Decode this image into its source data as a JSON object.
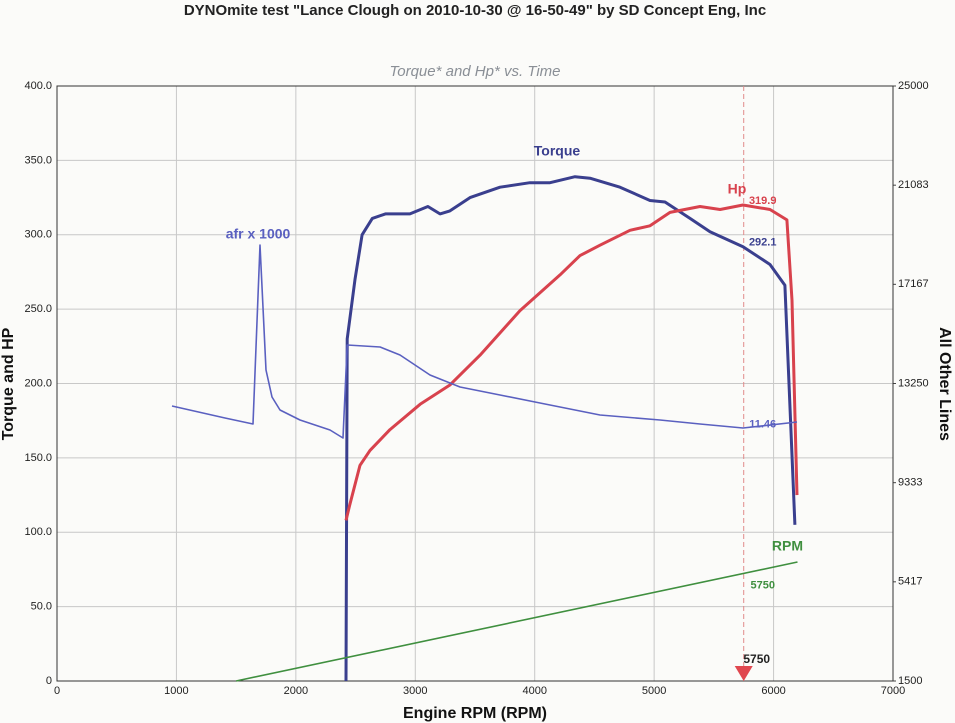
{
  "chart_data": {
    "type": "line",
    "title": "DYNOmite test \"Lance Clough on 2010-10-30 @ 16-50-49\" by SD Concept Eng, Inc",
    "subtitle": "Torque* and Hp* vs. Time",
    "xlabel": "Engine RPM (RPM)",
    "ylabel": "Torque and HP",
    "y2label": "All Other Lines",
    "xlim": [
      0,
      7000
    ],
    "xticks": [
      0,
      1000,
      2000,
      3000,
      4000,
      5000,
      6000,
      7000
    ],
    "ylim": [
      0,
      400
    ],
    "yticks": [
      {
        "value": 0,
        "label": "0"
      },
      {
        "value": 50,
        "label": "50.0"
      },
      {
        "value": 100,
        "label": "100.0"
      },
      {
        "value": 150,
        "label": "150.0"
      },
      {
        "value": 200,
        "label": "200.0"
      },
      {
        "value": 250,
        "label": "250.0"
      },
      {
        "value": 300,
        "label": "300.0"
      },
      {
        "value": 350,
        "label": "350.0"
      },
      {
        "value": 400,
        "label": "400.0"
      }
    ],
    "y2lim": [
      1500,
      25000
    ],
    "y2ticks": [
      1500,
      5417,
      9333,
      13250,
      17167,
      21083,
      25000
    ],
    "grid": true,
    "cursor": {
      "x": 5750,
      "label": "5750"
    },
    "series": [
      {
        "name": "Torque",
        "color": "#3a3f8e",
        "width": 3,
        "x": [
          2420,
          2430,
          2495,
          2555,
          2640,
          2750,
          2955,
          3106,
          3207,
          3290,
          3458,
          3709,
          3960,
          4128,
          4337,
          4463,
          4714,
          4965,
          5091,
          5300,
          5468,
          5744,
          5970,
          6095,
          6179
        ],
        "values": [
          0,
          230,
          270,
          300,
          311,
          314,
          314,
          319,
          314,
          316,
          325,
          332,
          335,
          335,
          339,
          338,
          332,
          323,
          322,
          311,
          302,
          292,
          280,
          266,
          105
        ],
        "cursor_value": 292.1
      },
      {
        "name": "Hp",
        "color": "#d8424d",
        "width": 3,
        "x": [
          2420,
          2450,
          2537,
          2621,
          2788,
          3040,
          3290,
          3542,
          3877,
          4212,
          4379,
          4547,
          4798,
          4965,
          5133,
          5384,
          5552,
          5744,
          5970,
          6112,
          6154,
          6196
        ],
        "values": [
          108,
          118,
          145,
          155,
          169,
          186,
          199,
          219,
          249,
          273,
          286,
          293,
          303,
          306,
          315,
          319,
          317,
          320,
          317,
          310,
          256,
          125
        ],
        "cursor_value": 319.9
      },
      {
        "name": "afr x 1000",
        "color": "#5a60c0",
        "width": 1.6,
        "axis": "y2",
        "x": [
          963,
          1407,
          1641,
          1700,
          1750,
          1800,
          1867,
          2035,
          2286,
          2395,
          2430,
          2705,
          2872,
          3123,
          3374,
          3709,
          4044,
          4547,
          5049,
          5384,
          5744,
          6196
        ],
        "values": [
          12362,
          11889,
          11652,
          18722,
          13785,
          12718,
          12205,
          11810,
          11415,
          11099,
          14772,
          14693,
          14377,
          13587,
          13113,
          12797,
          12481,
          12007,
          11810,
          11652,
          11494,
          11731
        ],
        "cursor_value": {
          "value": 11460,
          "label": "11.46"
        }
      },
      {
        "name": "RPM",
        "color": "#3f8f3f",
        "width": 1.6,
        "axis": "y2",
        "x": [
          1500,
          6200
        ],
        "values": [
          1500,
          6200
        ],
        "cursor_value": 5750
      }
    ]
  }
}
